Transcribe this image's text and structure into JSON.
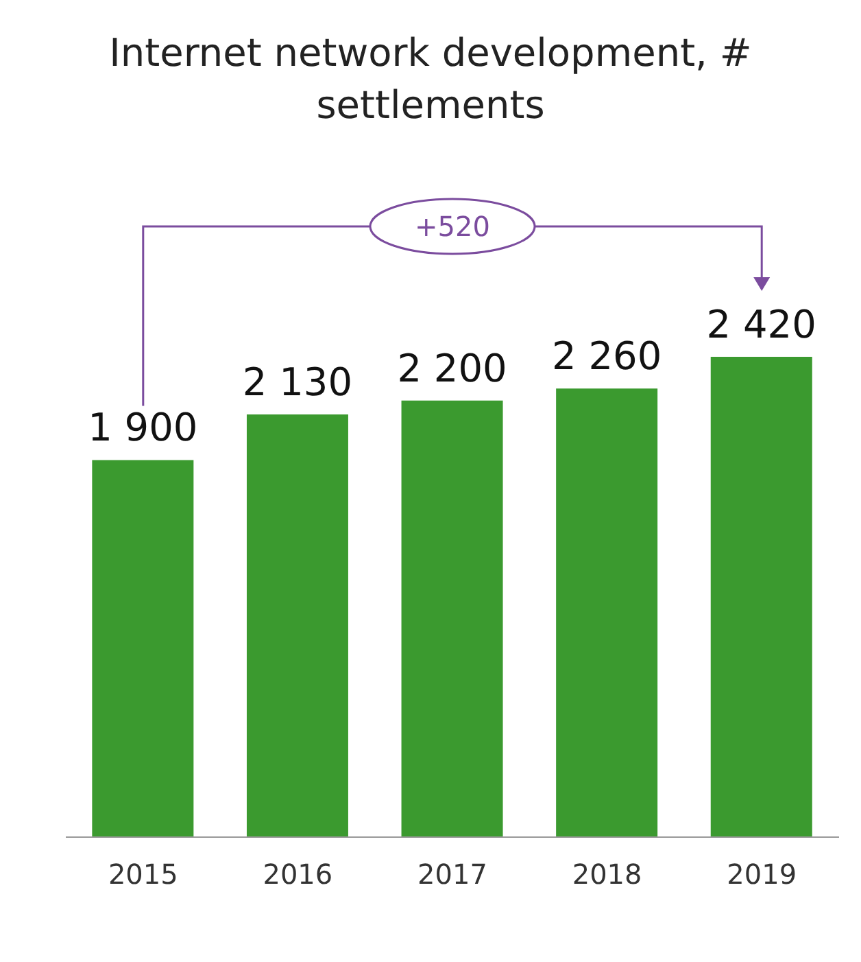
{
  "chart_data": {
    "type": "bar",
    "title": "Internet network development, # settlements",
    "categories": [
      "2015",
      "2016",
      "2017",
      "2018",
      "2019"
    ],
    "values": [
      1900,
      2130,
      2200,
      2260,
      2420
    ],
    "value_labels": [
      "1 900",
      "2 130",
      "2 200",
      "2 260",
      "2 420"
    ],
    "color": "#3b9a2f",
    "annotations": [
      "+520"
    ]
  }
}
